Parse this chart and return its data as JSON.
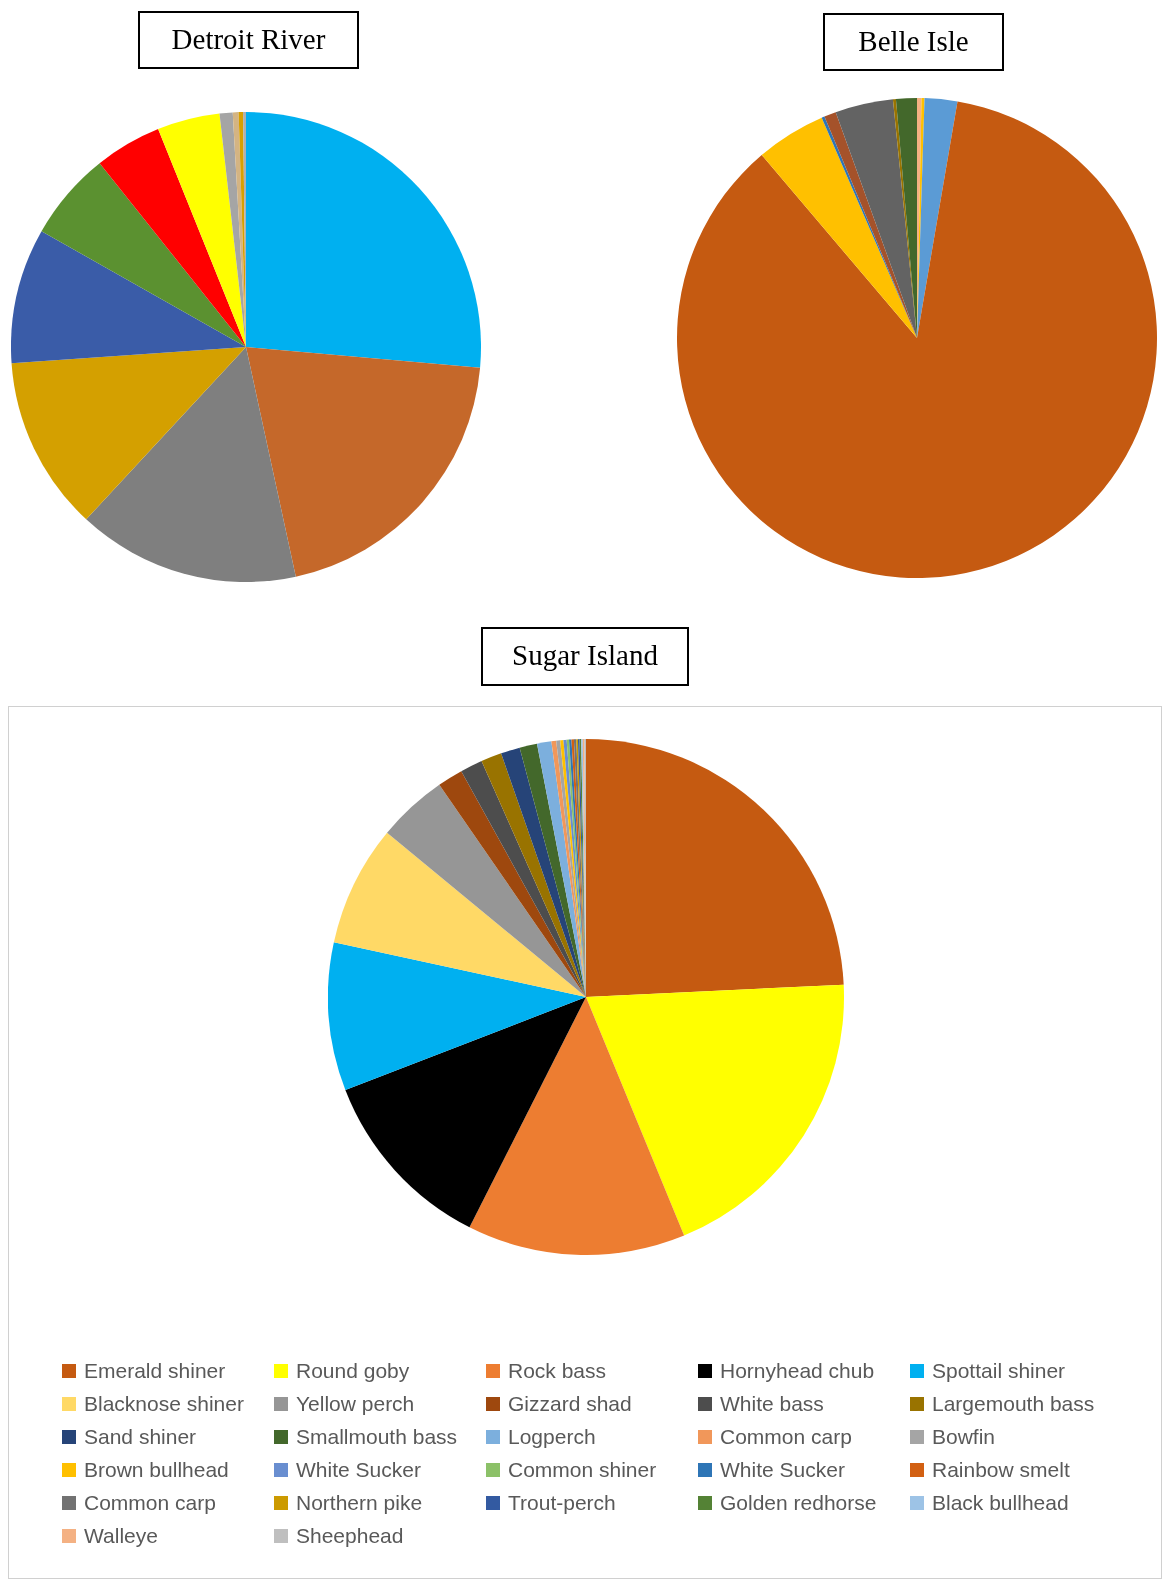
{
  "chart_data": [
    {
      "type": "pie",
      "title": "Detroit River",
      "categories": [
        null,
        null,
        null,
        null,
        null,
        null,
        null,
        null,
        null,
        null,
        null,
        null
      ],
      "values": [
        26.4,
        20.2,
        15.3,
        12.0,
        9.3,
        6.1,
        4.6,
        4.3,
        0.9,
        0.4,
        0.3,
        0.2
      ],
      "colors": [
        "#00b0f0",
        "#c5682a",
        "#7f7f7f",
        "#d4a000",
        "#3a5ca8",
        "#5b9130",
        "#ff0000",
        "#ffff00",
        "#a5a5a5",
        "#d4b483",
        "#d8a000",
        "#b0b0b0"
      ],
      "legend": false
    },
    {
      "type": "pie",
      "title": "Belle Isle",
      "categories": [
        null,
        null,
        null,
        null,
        null,
        null,
        null,
        null,
        null,
        null
      ],
      "values": [
        0.3,
        0.2,
        2.2,
        86.1,
        4.7,
        0.2,
        0.8,
        3.9,
        0.2,
        1.4
      ],
      "colors": [
        "#f4b183",
        "#ffc000",
        "#5b9bd5",
        "#c55a11",
        "#ffc000",
        "#2e75b6",
        "#a5522a",
        "#636363",
        "#997300",
        "#43682b"
      ],
      "legend": false
    },
    {
      "type": "pie",
      "title": "Sugar Island",
      "categories": [
        "Emerald shiner",
        "Round goby",
        "Rock bass",
        "Hornyhead chub",
        "Spottail shiner",
        "Blacknose shiner",
        "Yellow perch",
        "Gizzard shad",
        "White bass",
        "Largemouth bass",
        "Sand shiner",
        "Smallmouth bass",
        "Logperch",
        "Common carp",
        "Bowfin",
        "Brown bullhead",
        "White Sucker",
        "Common shiner",
        "White Sucker",
        "Rainbow smelt",
        "Common carp",
        "Northern pike",
        "Trout-perch",
        "Golden redhorse",
        "Black bullhead",
        "Walleye",
        "Sheephead"
      ],
      "values": [
        24.3,
        19.6,
        13.7,
        11.7,
        9.3,
        7.6,
        4.4,
        1.6,
        1.4,
        1.3,
        1.2,
        1.1,
        0.9,
        0.3,
        0.25,
        0.2,
        0.2,
        0.15,
        0.15,
        0.15,
        0.15,
        0.1,
        0.1,
        0.1,
        0.1,
        0.1,
        0.1
      ],
      "colors": [
        "#c55a11",
        "#ffff00",
        "#ed7d31",
        "#000000",
        "#00b0f0",
        "#ffd966",
        "#969696",
        "#9e480e",
        "#4d4d4d",
        "#997300",
        "#264478",
        "#43682b",
        "#7cafdd",
        "#f1975a",
        "#a5a5a5",
        "#ffc000",
        "#698ed0",
        "#8cc168",
        "#2e75b6",
        "#d26012",
        "#727272",
        "#cc9a00",
        "#335aa1",
        "#548235",
        "#9dc3e6",
        "#f4b183",
        "#bfbfbf"
      ],
      "legend": "bottom"
    }
  ]
}
